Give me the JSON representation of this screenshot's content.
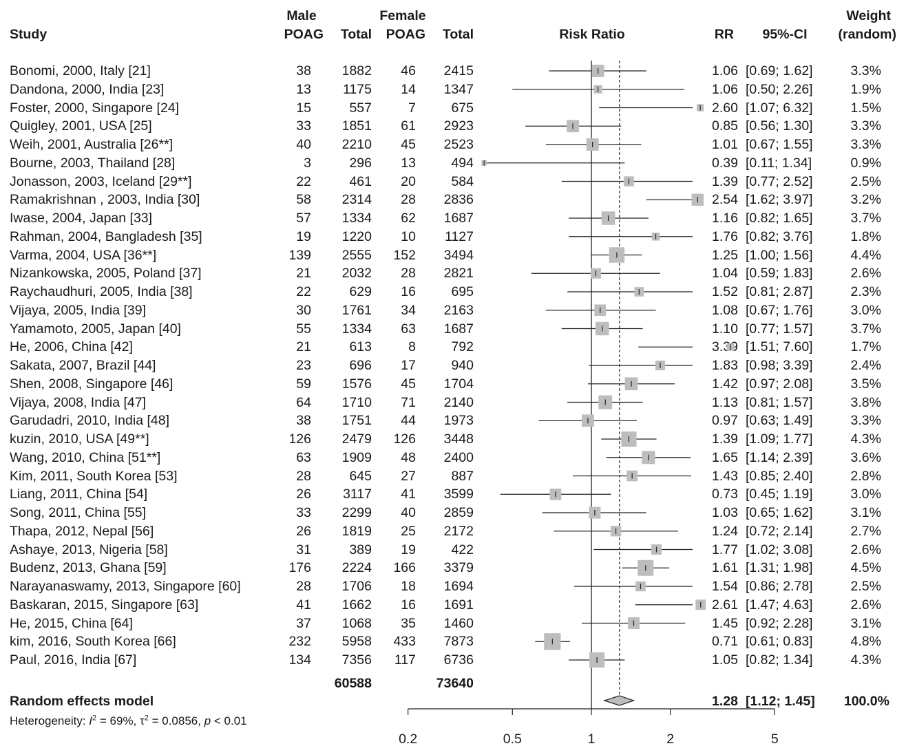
{
  "headers": {
    "study": "Study",
    "male_group": "Male",
    "male_poag": "POAG",
    "male_total": "Total",
    "female_group": "Female",
    "female_poag": "POAG",
    "female_total": "Total",
    "risk_ratio": "Risk Ratio",
    "rr": "RR",
    "ci": "95%-CI",
    "weight_1": "Weight",
    "weight_2": "(random)"
  },
  "totals": {
    "male_total": "60588",
    "female_total": "73640"
  },
  "summary": {
    "label": "Random effects model",
    "rr": "1.28",
    "ci": "[1.12; 1.45]",
    "weight": "100.0%"
  },
  "heterogeneity": {
    "prefix": "Heterogeneity: ",
    "i_symbol": "I",
    "i_value": " = 69%, ",
    "tau_symbol": "τ",
    "tau_value": " = 0.0856, ",
    "p_symbol": "p",
    "p_value": " < 0.01",
    "superscript": "2"
  },
  "chart_data": {
    "type": "forest",
    "title": "Risk Ratio",
    "xscale": "log",
    "xlim": [
      0.2,
      5
    ],
    "xticks": [
      0.2,
      0.5,
      1,
      2,
      5
    ],
    "xtick_labels": [
      "0.2",
      "0.5",
      "1",
      "2",
      "5"
    ],
    "null_value": 1,
    "pooled": {
      "rr": 1.28,
      "lo": 1.12,
      "hi": 1.45
    },
    "studies": [
      {
        "study": "Bonomi, 2000, Italy [21]",
        "male_poag": "38",
        "male_total": "1882",
        "female_poag": "46",
        "female_total": "2415",
        "rr_text": "1.06",
        "ci_text": "[0.69; 1.62]",
        "weight_text": "3.3%",
        "rr": 1.06,
        "lo": 0.69,
        "hi": 1.62,
        "weight": 3.3
      },
      {
        "study": "Dandona, 2000, India [23]",
        "male_poag": "13",
        "male_total": "1175",
        "female_poag": "14",
        "female_total": "1347",
        "rr_text": "1.06",
        "ci_text": "[0.50; 2.26]",
        "weight_text": "1.9%",
        "rr": 1.06,
        "lo": 0.5,
        "hi": 2.26,
        "weight": 1.9
      },
      {
        "study": "Foster, 2000, Singapore [24]",
        "male_poag": "15",
        "male_total": "557",
        "female_poag": "7",
        "female_total": "675",
        "rr_text": "2.60",
        "ci_text": "[1.07; 6.32]",
        "weight_text": "1.5%",
        "rr": 2.6,
        "lo": 1.07,
        "hi": 6.32,
        "weight": 1.5
      },
      {
        "study": "Quigley, 2001, USA [25]",
        "male_poag": "33",
        "male_total": "1851",
        "female_poag": "61",
        "female_total": "2923",
        "rr_text": "0.85",
        "ci_text": "[0.56; 1.30]",
        "weight_text": "3.3%",
        "rr": 0.85,
        "lo": 0.56,
        "hi": 1.3,
        "weight": 3.3
      },
      {
        "study": "Weih, 2001, Australia [26**]",
        "male_poag": "40",
        "male_total": "2210",
        "female_poag": "45",
        "female_total": "2523",
        "rr_text": "1.01",
        "ci_text": "[0.67; 1.55]",
        "weight_text": "3.3%",
        "rr": 1.01,
        "lo": 0.67,
        "hi": 1.55,
        "weight": 3.3
      },
      {
        "study": "Bourne, 2003, Thailand [28]",
        "male_poag": "3",
        "male_total": "296",
        "female_poag": "13",
        "female_total": "494",
        "rr_text": "0.39",
        "ci_text": "[0.11; 1.34]",
        "weight_text": "0.9%",
        "rr": 0.39,
        "lo": 0.11,
        "hi": 1.34,
        "weight": 0.9
      },
      {
        "study": "Jonasson, 2003, Iceland [29**]",
        "male_poag": "22",
        "male_total": "461",
        "female_poag": "20",
        "female_total": "584",
        "rr_text": "1.39",
        "ci_text": "[0.77; 2.52]",
        "weight_text": "2.5%",
        "rr": 1.39,
        "lo": 0.77,
        "hi": 2.52,
        "weight": 2.5
      },
      {
        "study": "Ramakrishnan , 2003, India [30]",
        "male_poag": "58",
        "male_total": "2314",
        "female_poag": "28",
        "female_total": "2836",
        "rr_text": "2.54",
        "ci_text": "[1.62; 3.97]",
        "weight_text": "3.2%",
        "rr": 2.54,
        "lo": 1.62,
        "hi": 3.97,
        "weight": 3.2
      },
      {
        "study": "Iwase, 2004, Japan [33]",
        "male_poag": "57",
        "male_total": "1334",
        "female_poag": "62",
        "female_total": "1687",
        "rr_text": "1.16",
        "ci_text": "[0.82; 1.65]",
        "weight_text": "3.7%",
        "rr": 1.16,
        "lo": 0.82,
        "hi": 1.65,
        "weight": 3.7
      },
      {
        "study": "Rahman, 2004, Bangladesh [35]",
        "male_poag": "19",
        "male_total": "1220",
        "female_poag": "10",
        "female_total": "1127",
        "rr_text": "1.76",
        "ci_text": "[0.82; 3.76]",
        "weight_text": "1.8%",
        "rr": 1.76,
        "lo": 0.82,
        "hi": 3.76,
        "weight": 1.8
      },
      {
        "study": "Varma, 2004, USA [36**]",
        "male_poag": "139",
        "male_total": "2555",
        "female_poag": "152",
        "female_total": "3494",
        "rr_text": "1.25",
        "ci_text": "[1.00; 1.56]",
        "weight_text": "4.4%",
        "rr": 1.25,
        "lo": 1.0,
        "hi": 1.56,
        "weight": 4.4
      },
      {
        "study": "Nizankowska, 2005, Poland [37]",
        "male_poag": "21",
        "male_total": "2032",
        "female_poag": "28",
        "female_total": "2821",
        "rr_text": "1.04",
        "ci_text": "[0.59; 1.83]",
        "weight_text": "2.6%",
        "rr": 1.04,
        "lo": 0.59,
        "hi": 1.83,
        "weight": 2.6
      },
      {
        "study": "Raychaudhuri, 2005, India [38]",
        "male_poag": "22",
        "male_total": "629",
        "female_poag": "16",
        "female_total": "695",
        "rr_text": "1.52",
        "ci_text": "[0.81; 2.87]",
        "weight_text": "2.3%",
        "rr": 1.52,
        "lo": 0.81,
        "hi": 2.87,
        "weight": 2.3
      },
      {
        "study": "Vijaya, 2005, India [39]",
        "male_poag": "30",
        "male_total": "1761",
        "female_poag": "34",
        "female_total": "2163",
        "rr_text": "1.08",
        "ci_text": "[0.67; 1.76]",
        "weight_text": "3.0%",
        "rr": 1.08,
        "lo": 0.67,
        "hi": 1.76,
        "weight": 3.0
      },
      {
        "study": "Yamamoto, 2005, Japan [40]",
        "male_poag": "55",
        "male_total": "1334",
        "female_poag": "63",
        "female_total": "1687",
        "rr_text": "1.10",
        "ci_text": "[0.77; 1.57]",
        "weight_text": "3.7%",
        "rr": 1.1,
        "lo": 0.77,
        "hi": 1.57,
        "weight": 3.7
      },
      {
        "study": "He, 2006, China [42]",
        "male_poag": "21",
        "male_total": "613",
        "female_poag": "8",
        "female_total": "792",
        "rr_text": "3.39",
        "ci_text": "[1.51; 7.60]",
        "weight_text": "1.7%",
        "rr": 3.39,
        "lo": 1.51,
        "hi": 7.6,
        "weight": 1.7
      },
      {
        "study": "Sakata, 2007, Brazil [44]",
        "male_poag": "23",
        "male_total": "696",
        "female_poag": "17",
        "female_total": "940",
        "rr_text": "1.83",
        "ci_text": "[0.98; 3.39]",
        "weight_text": "2.4%",
        "rr": 1.83,
        "lo": 0.98,
        "hi": 3.39,
        "weight": 2.4
      },
      {
        "study": "Shen, 2008, Singapore [46]",
        "male_poag": "59",
        "male_total": "1576",
        "female_poag": "45",
        "female_total": "1704",
        "rr_text": "1.42",
        "ci_text": "[0.97; 2.08]",
        "weight_text": "3.5%",
        "rr": 1.42,
        "lo": 0.97,
        "hi": 2.08,
        "weight": 3.5
      },
      {
        "study": "Vijaya, 2008, India [47]",
        "male_poag": "64",
        "male_total": "1710",
        "female_poag": "71",
        "female_total": "2140",
        "rr_text": "1.13",
        "ci_text": "[0.81; 1.57]",
        "weight_text": "3.8%",
        "rr": 1.13,
        "lo": 0.81,
        "hi": 1.57,
        "weight": 3.8
      },
      {
        "study": "Garudadri, 2010, India [48]",
        "male_poag": "38",
        "male_total": "1751",
        "female_poag": "44",
        "female_total": "1973",
        "rr_text": "0.97",
        "ci_text": "[0.63; 1.49]",
        "weight_text": "3.3%",
        "rr": 0.97,
        "lo": 0.63,
        "hi": 1.49,
        "weight": 3.3
      },
      {
        "study": "kuzin, 2010, USA [49**]",
        "male_poag": "126",
        "male_total": "2479",
        "female_poag": "126",
        "female_total": "3448",
        "rr_text": "1.39",
        "ci_text": "[1.09; 1.77]",
        "weight_text": "4.3%",
        "rr": 1.39,
        "lo": 1.09,
        "hi": 1.77,
        "weight": 4.3
      },
      {
        "study": "Wang, 2010, China [51**]",
        "male_poag": "63",
        "male_total": "1909",
        "female_poag": "48",
        "female_total": "2400",
        "rr_text": "1.65",
        "ci_text": "[1.14; 2.39]",
        "weight_text": "3.6%",
        "rr": 1.65,
        "lo": 1.14,
        "hi": 2.39,
        "weight": 3.6
      },
      {
        "study": "Kim, 2011, South Korea [53]",
        "male_poag": "28",
        "male_total": "645",
        "female_poag": "27",
        "female_total": "887",
        "rr_text": "1.43",
        "ci_text": "[0.85; 2.40]",
        "weight_text": "2.8%",
        "rr": 1.43,
        "lo": 0.85,
        "hi": 2.4,
        "weight": 2.8
      },
      {
        "study": "Liang, 2011, China [54]",
        "male_poag": "26",
        "male_total": "3117",
        "female_poag": "41",
        "female_total": "3599",
        "rr_text": "0.73",
        "ci_text": "[0.45; 1.19]",
        "weight_text": "3.0%",
        "rr": 0.73,
        "lo": 0.45,
        "hi": 1.19,
        "weight": 3.0
      },
      {
        "study": "Song, 2011, China [55]",
        "male_poag": "33",
        "male_total": "2299",
        "female_poag": "40",
        "female_total": "2859",
        "rr_text": "1.03",
        "ci_text": "[0.65; 1.62]",
        "weight_text": "3.1%",
        "rr": 1.03,
        "lo": 0.65,
        "hi": 1.62,
        "weight": 3.1
      },
      {
        "study": "Thapa, 2012, Nepal [56]",
        "male_poag": "26",
        "male_total": "1819",
        "female_poag": "25",
        "female_total": "2172",
        "rr_text": "1.24",
        "ci_text": "[0.72; 2.14]",
        "weight_text": "2.7%",
        "rr": 1.24,
        "lo": 0.72,
        "hi": 2.14,
        "weight": 2.7
      },
      {
        "study": "Ashaye, 2013, Nigeria [58]",
        "male_poag": "31",
        "male_total": "389",
        "female_poag": "19",
        "female_total": "422",
        "rr_text": "1.77",
        "ci_text": "[1.02; 3.08]",
        "weight_text": "2.6%",
        "rr": 1.77,
        "lo": 1.02,
        "hi": 3.08,
        "weight": 2.6
      },
      {
        "study": "Budenz, 2013, Ghana [59]",
        "male_poag": "176",
        "male_total": "2224",
        "female_poag": "166",
        "female_total": "3379",
        "rr_text": "1.61",
        "ci_text": "[1.31; 1.98]",
        "weight_text": "4.5%",
        "rr": 1.61,
        "lo": 1.31,
        "hi": 1.98,
        "weight": 4.5
      },
      {
        "study": "Narayanaswamy, 2013, Singapore [60]",
        "male_poag": "28",
        "male_total": "1706",
        "female_poag": "18",
        "female_total": "1694",
        "rr_text": "1.54",
        "ci_text": "[0.86; 2.78]",
        "weight_text": "2.5%",
        "rr": 1.54,
        "lo": 0.86,
        "hi": 2.78,
        "weight": 2.5
      },
      {
        "study": "Baskaran, 2015, Singapore [63]",
        "male_poag": "41",
        "male_total": "1662",
        "female_poag": "16",
        "female_total": "1691",
        "rr_text": "2.61",
        "ci_text": "[1.47; 4.63]",
        "weight_text": "2.6%",
        "rr": 2.61,
        "lo": 1.47,
        "hi": 4.63,
        "weight": 2.6
      },
      {
        "study": "He, 2015, China [64]",
        "male_poag": "37",
        "male_total": "1068",
        "female_poag": "35",
        "female_total": "1460",
        "rr_text": "1.45",
        "ci_text": "[0.92; 2.28]",
        "weight_text": "3.1%",
        "rr": 1.45,
        "lo": 0.92,
        "hi": 2.28,
        "weight": 3.1
      },
      {
        "study": "kim, 2016, South Korea [66]",
        "male_poag": "232",
        "male_total": "5958",
        "female_poag": "433",
        "female_total": "7873",
        "rr_text": "0.71",
        "ci_text": "[0.61; 0.83]",
        "weight_text": "4.8%",
        "rr": 0.71,
        "lo": 0.61,
        "hi": 0.83,
        "weight": 4.8
      },
      {
        "study": "Paul, 2016, India [67]",
        "male_poag": "134",
        "male_total": "7356",
        "female_poag": "117",
        "female_total": "6736",
        "rr_text": "1.05",
        "ci_text": "[0.82; 1.34]",
        "weight_text": "4.3%",
        "rr": 1.05,
        "lo": 0.82,
        "hi": 1.34,
        "weight": 4.3
      }
    ]
  }
}
